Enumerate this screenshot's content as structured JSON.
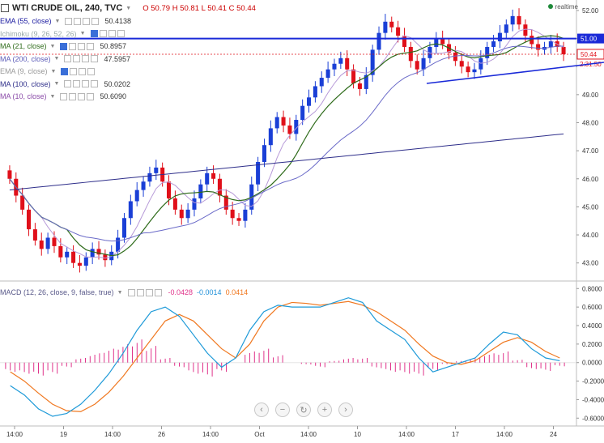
{
  "header": {
    "symbol": "WTI CRUDE OIL, 240, TVC",
    "ohlc": {
      "o_label": "O",
      "o": "50.79",
      "h_label": "H",
      "h": "50.81",
      "l_label": "L",
      "l": "50.41",
      "c_label": "C",
      "c": "50.44"
    },
    "realtime_label": "realtime"
  },
  "indicators": [
    {
      "name": "EMA (55, close)",
      "value": "50.4138",
      "color": "#1a1aa0",
      "enabled_ctrl": false
    },
    {
      "name": "Ichimoku (9, 26, 52, 26)",
      "value": "",
      "color": "#9aa",
      "enabled_ctrl": true
    },
    {
      "name": "MA (21, close)",
      "value": "50.8957",
      "color": "#2e6b1a",
      "enabled_ctrl": true
    },
    {
      "name": "MA (200, close)",
      "value": "47.5957",
      "color": "#5b5bb8",
      "enabled_ctrl": false
    },
    {
      "name": "EMA (9, close)",
      "value": "",
      "color": "#999",
      "enabled_ctrl": true
    },
    {
      "name": "MA (100, close)",
      "value": "50.0202",
      "color": "#2e2e8a",
      "enabled_ctrl": false
    },
    {
      "name": "MA (10, close)",
      "value": "50.6090",
      "color": "#8a4aa8",
      "enabled_ctrl": false
    }
  ],
  "macd": {
    "name": "MACD (12, 26, close, 9, false, true)",
    "values": [
      "-0.0428",
      "-0.0014",
      "0.0414"
    ],
    "value_colors": [
      "#e0338a",
      "#1e8fd8",
      "#f07820"
    ]
  },
  "price_axis": {
    "ticks": [
      "52.00",
      "51.00",
      "50.00",
      "49.00",
      "48.00",
      "47.00",
      "46.00",
      "45.00",
      "44.00",
      "43.00"
    ],
    "current_price_label": "50.44",
    "countdown_label": "2:31:50",
    "level_label": "51.00"
  },
  "macd_axis": {
    "ticks": [
      "0.8000",
      "0.6000",
      "0.4000",
      "0.2000",
      "0.0000",
      "-0.2000",
      "-0.4000",
      "-0.6000"
    ]
  },
  "time_axis": {
    "ticks": [
      "14:00",
      "19",
      "14:00",
      "26",
      "14:00",
      "Oct",
      "14:00",
      "10",
      "14:00",
      "17",
      "14:00",
      "24"
    ]
  },
  "nav_buttons": [
    {
      "label": "‹",
      "name": "scroll-left-button"
    },
    {
      "label": "−",
      "name": "zoom-out-button"
    },
    {
      "label": "↻",
      "name": "reset-button"
    },
    {
      "label": "+",
      "name": "zoom-in-button"
    },
    {
      "label": "›",
      "name": "scroll-right-button"
    }
  ],
  "colors": {
    "up_candle": "#1a3fd6",
    "down_candle": "#e0101a",
    "horizontal_level": "#1a2ad8",
    "trendline": "#1a2ad8",
    "price_line": "#e0101a",
    "macd_line": "#1e9ad8",
    "signal_line": "#f07820",
    "histogram": "#e0338a"
  },
  "chart_data": {
    "type": "candlestick",
    "price": {
      "ylim": [
        42.5,
        52.2
      ],
      "closes": [
        46.0,
        45.4,
        44.9,
        44.2,
        43.8,
        43.5,
        43.9,
        43.6,
        43.2,
        43.4,
        43.0,
        42.9,
        43.2,
        43.5,
        43.3,
        43.1,
        43.4,
        43.9,
        44.6,
        45.2,
        45.6,
        45.9,
        46.2,
        46.4,
        45.9,
        45.3,
        44.9,
        44.6,
        44.9,
        45.3,
        45.8,
        46.2,
        46.0,
        45.4,
        44.9,
        44.6,
        44.5,
        44.9,
        45.8,
        46.6,
        47.2,
        47.8,
        48.2,
        47.9,
        47.6,
        48.1,
        48.6,
        48.9,
        49.3,
        49.6,
        49.9,
        50.1,
        50.3,
        49.9,
        49.4,
        49.2,
        49.7,
        50.6,
        51.2,
        51.6,
        51.4,
        51.1,
        50.7,
        50.2,
        49.9,
        50.3,
        50.7,
        51.0,
        50.8,
        50.5,
        50.2,
        50.0,
        49.8,
        49.9,
        50.3,
        50.7,
        50.9,
        51.2,
        51.5,
        51.8,
        51.5,
        51.1,
        50.8,
        50.6,
        50.7,
        50.9,
        50.7,
        50.44
      ],
      "horizontal_level": 51.0,
      "current_price": 50.44
    },
    "macd": {
      "ylim": [
        -0.65,
        0.82
      ],
      "macd_line": [
        -0.25,
        -0.35,
        -0.5,
        -0.58,
        -0.55,
        -0.45,
        -0.3,
        -0.12,
        0.1,
        0.35,
        0.55,
        0.6,
        0.5,
        0.3,
        0.1,
        -0.05,
        0.05,
        0.35,
        0.55,
        0.62,
        0.6,
        0.6,
        0.6,
        0.65,
        0.7,
        0.65,
        0.45,
        0.35,
        0.25,
        0.05,
        -0.1,
        -0.05,
        0.0,
        0.05,
        0.2,
        0.33,
        0.3,
        0.15,
        0.05,
        0.02
      ],
      "signal_line": [
        -0.1,
        -0.2,
        -0.33,
        -0.45,
        -0.52,
        -0.53,
        -0.45,
        -0.32,
        -0.15,
        0.05,
        0.25,
        0.45,
        0.52,
        0.45,
        0.3,
        0.15,
        0.05,
        0.2,
        0.45,
        0.6,
        0.65,
        0.64,
        0.62,
        0.64,
        0.66,
        0.62,
        0.55,
        0.45,
        0.35,
        0.2,
        0.07,
        0.0,
        -0.02,
        0.02,
        0.12,
        0.22,
        0.27,
        0.22,
        0.12,
        0.05
      ],
      "histogram": [
        -0.1,
        -0.12,
        -0.14,
        -0.12,
        -0.05,
        0.05,
        0.1,
        0.15,
        0.2,
        0.25,
        0.18,
        0.05,
        -0.05,
        -0.12,
        -0.15,
        -0.1,
        0.0,
        0.12,
        0.15,
        0.08,
        0.0,
        -0.02,
        -0.05,
        0.02,
        0.05,
        0.05,
        -0.06,
        -0.1,
        -0.12,
        -0.14,
        -0.08,
        -0.02,
        0.02,
        0.05,
        0.1,
        0.12,
        0.03,
        -0.07,
        -0.09,
        -0.04
      ]
    }
  }
}
